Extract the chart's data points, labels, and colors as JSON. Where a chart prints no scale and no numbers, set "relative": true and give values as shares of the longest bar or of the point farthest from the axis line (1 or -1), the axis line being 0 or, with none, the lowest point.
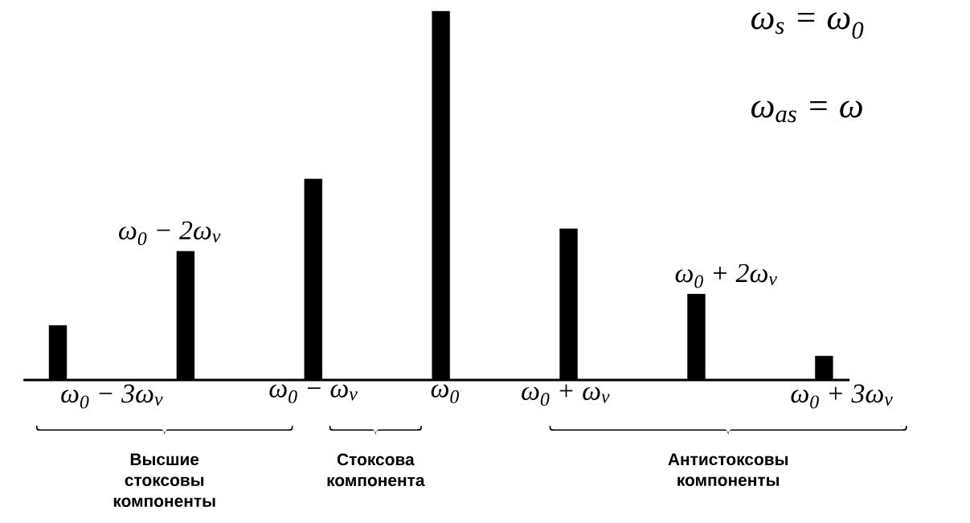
{
  "chart_data": {
    "type": "bar",
    "relative": true,
    "categories": [
      "ω$_{0}$ − 3ω$_{v}$",
      "ω$_{0}$ − 2ω$_{v}$",
      "ω$_{0}$ − ω$_{v}$",
      "ω$_{0}$",
      "ω$_{0}$ + ω$_{v}$",
      "ω$_{0}$ + 2ω$_{v}$",
      "ω$_{0}$ + 3ω$_{v}$"
    ],
    "values": [
      0.148,
      0.349,
      0.545,
      1,
      0.41,
      0.233,
      0.065
    ],
    "color": "#000000",
    "annotations": [
      "ω$_{s}$ = ω$_{0}$",
      "ω$_{as}$ = ω",
      "Высшие стоксовы компоненты",
      "Стоксова компонента",
      "Антистоксовы компоненты"
    ]
  }
}
